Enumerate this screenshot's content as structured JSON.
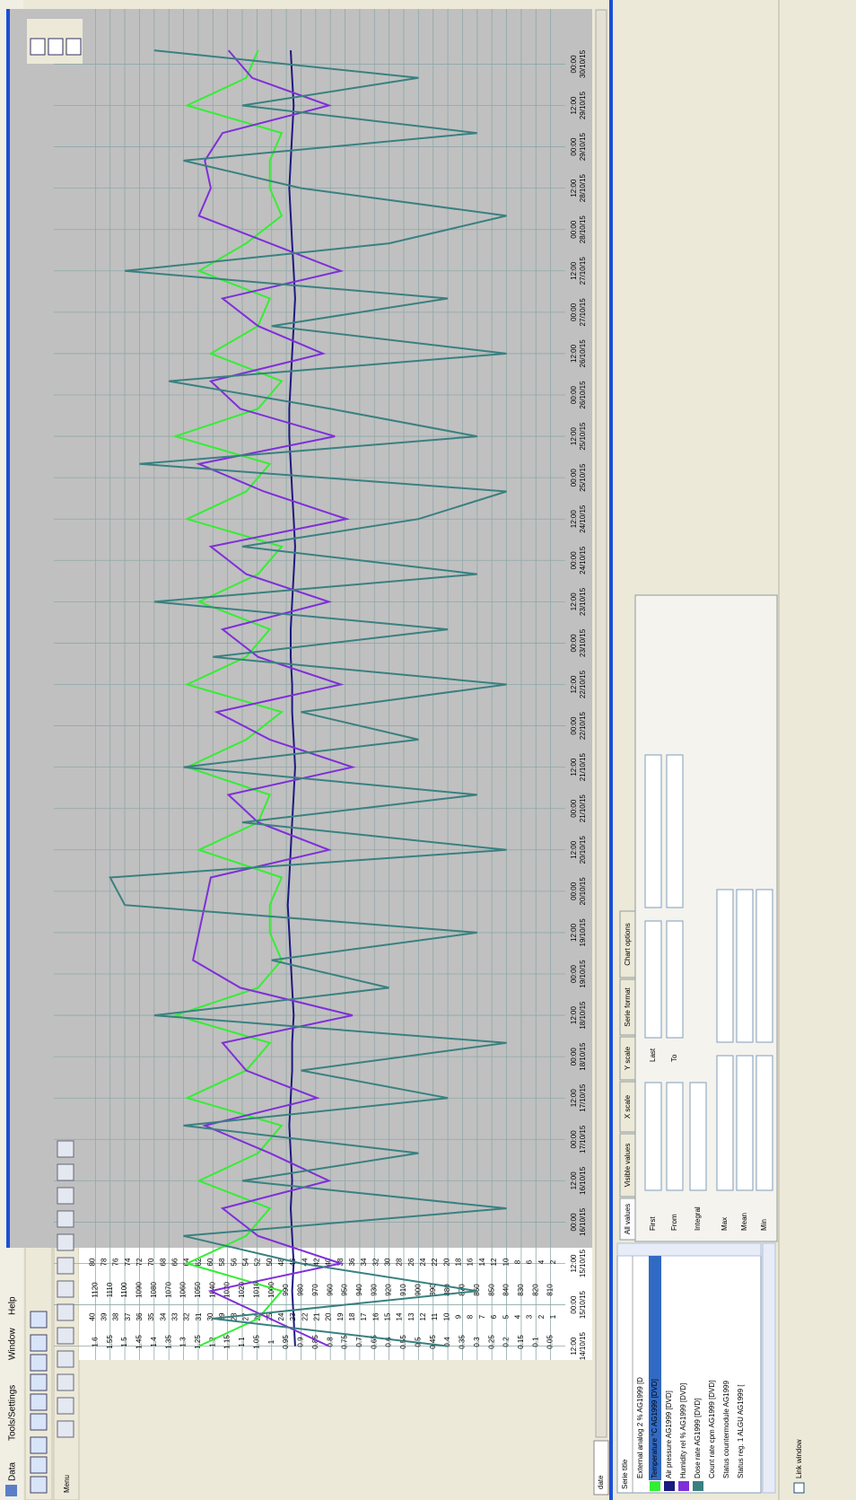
{
  "menu": [
    "Data",
    "Tools/Settings",
    "Window",
    "Help"
  ],
  "toolbar_label": "Menu",
  "date_label": "date",
  "series_list": {
    "header": "Serie title",
    "before": [
      "External analog 2 % AG1999 [D"
    ],
    "after": [
      "Count rate cpm AG1999 [DVD]",
      "Status countermodule AG1999",
      "Status reg. 1 ALGU AG1999 ["
    ]
  },
  "tabs": [
    "All values",
    "Visible values",
    "X scale",
    "Y scale",
    "Serie format",
    "Chart options"
  ],
  "fields": {
    "first": "First",
    "from": "From",
    "last": "Last",
    "to": "To",
    "integral": "Integral",
    "max": "Max",
    "mean": "Mean",
    "min": "Min"
  },
  "link_window": "Link window",
  "chart_data": {
    "type": "line",
    "grid": true,
    "x": [
      "12:00 14/10/15",
      "20:00 14/10/15",
      "04:00 15/10/15",
      "12:00 15/10/15",
      "20:00 15/10/15",
      "04:00 16/10/15",
      "12:00 16/10/15",
      "20:00 16/10/15",
      "04:00 17/10/15",
      "12:00 17/10/15",
      "20:00 17/10/15",
      "04:00 18/10/15",
      "12:00 18/10/15",
      "20:00 18/10/15",
      "04:00 19/10/15",
      "12:00 19/10/15",
      "20:00 19/10/15",
      "04:00 20/10/15",
      "12:00 20/10/15",
      "20:00 20/10/15",
      "04:00 21/10/15",
      "12:00 21/10/15",
      "20:00 21/10/15",
      "04:00 22/10/15",
      "12:00 22/10/15",
      "20:00 22/10/15",
      "04:00 23/10/15",
      "12:00 23/10/15",
      "20:00 23/10/15",
      "04:00 24/10/15",
      "12:00 24/10/15",
      "20:00 24/10/15",
      "04:00 25/10/15",
      "12:00 25/10/15",
      "20:00 25/10/15",
      "04:00 26/10/15",
      "12:00 26/10/15",
      "20:00 26/10/15",
      "04:00 27/10/15",
      "12:00 27/10/15",
      "20:00 27/10/15",
      "04:00 28/10/15",
      "12:00 28/10/15",
      "20:00 28/10/15",
      "04:00 29/10/15",
      "12:00 29/10/15",
      "20:00 29/10/15",
      "04:00 30/10/15"
    ],
    "xlim": [
      "08:00 14/10/15",
      "16:00 30/10/15"
    ],
    "xticks": [
      "12:00 14/10/15",
      "00:00 15/10/15",
      "12:00 15/10/15",
      "00:00 16/10/15",
      "12:00 16/10/15",
      "00:00 17/10/15",
      "12:00 17/10/15",
      "00:00 18/10/15",
      "12:00 18/10/15",
      "00:00 19/10/15",
      "12:00 19/10/15",
      "00:00 20/10/15",
      "12:00 20/10/15",
      "00:00 21/10/15",
      "12:00 21/10/15",
      "00:00 22/10/15",
      "12:00 22/10/15",
      "00:00 23/10/15",
      "12:00 23/10/15",
      "00:00 24/10/15",
      "12:00 24/10/15",
      "00:00 25/10/15",
      "12:00 25/10/15",
      "00:00 26/10/15",
      "12:00 26/10/15",
      "00:00 27/10/15",
      "12:00 27/10/15",
      "00:00 28/10/15",
      "12:00 28/10/15",
      "00:00 29/10/15",
      "12:00 29/10/15",
      "00:00 30/10/15"
    ],
    "ylim": [
      0,
      1.65
    ],
    "yticks": [
      1.6,
      1.55,
      1.5,
      1.45,
      1.4,
      1.35,
      1.3,
      1.25,
      1.2,
      1.15,
      1.1,
      1.05,
      1,
      0.95,
      0.9,
      0.85,
      0.8,
      0.75,
      0.7,
      0.65,
      0.6,
      0.55,
      0.5,
      0.45,
      0.4,
      0.35,
      0.3,
      0.25,
      0.2,
      0.15,
      0.1,
      0.05
    ],
    "y2lim": [
      0,
      41
    ],
    "y2ticks": [
      40,
      39,
      38,
      37,
      36,
      35,
      34,
      33,
      32,
      31,
      30,
      29,
      28,
      27,
      26,
      25,
      24,
      23,
      22,
      21,
      20,
      19,
      18,
      17,
      16,
      15,
      14,
      13,
      12,
      11,
      10,
      9,
      8,
      7,
      6,
      5,
      4,
      3,
      2,
      1
    ],
    "y3lim": [
      800,
      1130
    ],
    "y3ticks": [
      1120,
      1110,
      1100,
      1090,
      1080,
      1070,
      1060,
      1050,
      1040,
      1030,
      1020,
      1010,
      1000,
      990,
      980,
      970,
      960,
      950,
      940,
      930,
      920,
      910,
      900,
      890,
      880,
      870,
      860,
      850,
      840,
      830,
      820,
      810
    ],
    "y4lim": [
      0,
      82
    ],
    "y4ticks": [
      80,
      78,
      76,
      74,
      72,
      70,
      68,
      66,
      64,
      62,
      60,
      58,
      56,
      54,
      52,
      50,
      48,
      46,
      44,
      42,
      40,
      38,
      36,
      34,
      32,
      30,
      28,
      26,
      24,
      22,
      20,
      18,
      16,
      14,
      12,
      10,
      8,
      6,
      4,
      2
    ],
    "series": [
      {
        "name": "Temperature °C AG1999 [DVD]",
        "color": "#33ee33",
        "axis": "y2",
        "values": [
          31,
          26,
          24,
          32,
          27,
          25,
          31,
          26,
          24,
          32,
          27,
          25,
          33,
          26,
          24,
          25,
          25,
          24,
          31,
          26,
          25,
          32,
          27,
          24,
          32,
          27,
          25,
          31,
          26,
          24,
          32,
          27,
          25,
          33,
          26,
          24,
          30,
          26,
          25,
          31,
          27,
          24,
          25,
          25,
          24,
          32,
          27,
          26
        ]
      },
      {
        "name": "Air pressure AG1999 [DVD]",
        "color": "#1a1a80",
        "axis": "y3",
        "values": [
          984,
          985,
          986,
          985,
          986,
          987,
          986,
          987,
          988,
          987,
          986,
          986,
          985,
          986,
          987,
          988,
          989,
          988,
          987,
          986,
          985,
          984,
          985,
          986,
          986,
          987,
          987,
          986,
          985,
          984,
          985,
          986,
          987,
          988,
          988,
          987,
          986,
          985,
          984,
          985,
          986,
          987,
          988,
          987,
          986,
          985,
          986,
          987
        ]
      },
      {
        "name": "Humidity rel % AG1999 [DVD]",
        "color": "#7f2fd8",
        "axis": "y4",
        "values": [
          40,
          50,
          60,
          38,
          52,
          58,
          40,
          50,
          61,
          42,
          54,
          58,
          36,
          55,
          63,
          62,
          61,
          60,
          40,
          52,
          57,
          36,
          50,
          59,
          38,
          52,
          58,
          40,
          54,
          60,
          37,
          51,
          62,
          39,
          55,
          60,
          41,
          52,
          58,
          38,
          50,
          62,
          60,
          61,
          58,
          40,
          53,
          57
        ]
      },
      {
        "name": "Dose rate AG1999 [DVD]",
        "color": "#3a8080",
        "axis": "y",
        "values": [
          0.4,
          1.2,
          0.3,
          0.9,
          1.3,
          0.2,
          1.1,
          0.5,
          1.3,
          0.4,
          0.9,
          0.2,
          1.4,
          0.6,
          1.0,
          0.3,
          1.5,
          1.55,
          0.2,
          1.1,
          0.3,
          1.3,
          0.5,
          0.9,
          0.2,
          1.2,
          0.4,
          1.4,
          0.3,
          1.1,
          0.5,
          0.2,
          1.45,
          0.3,
          0.8,
          1.35,
          0.2,
          1.0,
          0.4,
          1.5,
          0.6,
          0.2,
          0.9,
          1.3,
          0.3,
          1.1,
          0.5,
          1.4
        ]
      }
    ]
  }
}
